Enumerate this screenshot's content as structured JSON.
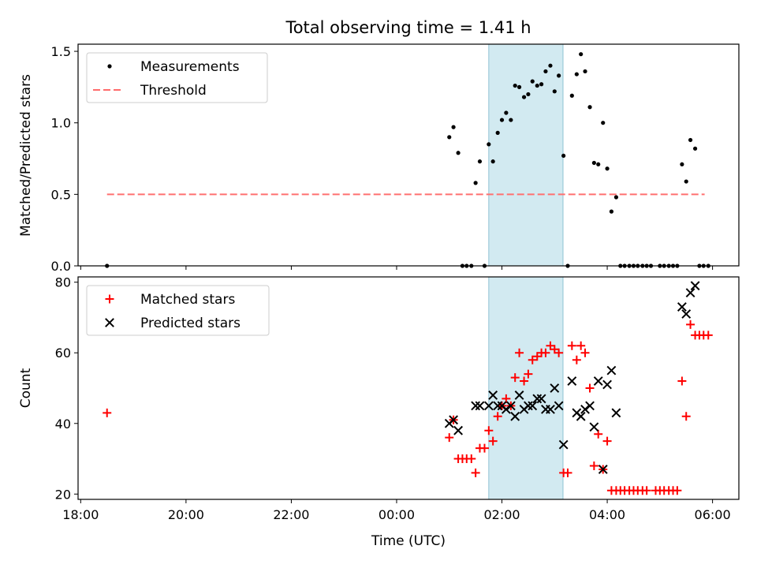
{
  "chart_data": {
    "title": "Total observing time = 1.41 h",
    "xlabel": "Time (UTC)",
    "x_ticks": [
      "18:00",
      "20:00",
      "22:00",
      "00:00",
      "02:00",
      "04:00",
      "06:00"
    ],
    "x_tick_hours": [
      -6,
      -4,
      -2,
      0,
      2,
      4,
      6
    ],
    "xlim_hours": [
      -6.05,
      6.5
    ],
    "shaded_span_hours": [
      1.75,
      3.16
    ],
    "shade_color": "#add8e6",
    "panels": [
      {
        "type": "scatter",
        "ylabel": "Matched/Predicted stars",
        "ylim": [
          0,
          1.55
        ],
        "y_ticks": [
          "0.0",
          "0.5",
          "1.0",
          "1.5"
        ],
        "y_tick_values": [
          0,
          0.5,
          1.0,
          1.5
        ],
        "legend": {
          "placement": "top-left",
          "entries": [
            {
              "label": "Measurements",
              "marker": "dot",
              "color": "#000000"
            },
            {
              "label": "Threshold",
              "marker": "dash",
              "color": "#ff6b6b"
            }
          ]
        },
        "threshold": {
          "name": "Threshold",
          "value": 0.5,
          "x_range_hours": [
            -5.5,
            5.85
          ],
          "color": "#ff7070"
        },
        "series": [
          {
            "name": "Measurements",
            "marker": "dot",
            "color": "#000000",
            "points": [
              [
                -5.5,
                0.0
              ],
              [
                1.0,
                0.9
              ],
              [
                1.08,
                0.97
              ],
              [
                1.17,
                0.79
              ],
              [
                1.25,
                0.0
              ],
              [
                1.33,
                0.0
              ],
              [
                1.42,
                0.0
              ],
              [
                1.5,
                0.58
              ],
              [
                1.58,
                0.73
              ],
              [
                1.67,
                0.0
              ],
              [
                1.75,
                0.85
              ],
              [
                1.83,
                0.73
              ],
              [
                1.92,
                0.93
              ],
              [
                2.0,
                1.02
              ],
              [
                2.08,
                1.07
              ],
              [
                2.17,
                1.02
              ],
              [
                2.25,
                1.26
              ],
              [
                2.33,
                1.25
              ],
              [
                2.42,
                1.18
              ],
              [
                2.5,
                1.2
              ],
              [
                2.58,
                1.29
              ],
              [
                2.67,
                1.26
              ],
              [
                2.75,
                1.27
              ],
              [
                2.83,
                1.36
              ],
              [
                2.92,
                1.4
              ],
              [
                3.0,
                1.22
              ],
              [
                3.08,
                1.33
              ],
              [
                3.17,
                0.77
              ],
              [
                3.25,
                0.0
              ],
              [
                3.33,
                1.19
              ],
              [
                3.42,
                1.34
              ],
              [
                3.5,
                1.48
              ],
              [
                3.58,
                1.36
              ],
              [
                3.67,
                1.11
              ],
              [
                3.75,
                0.72
              ],
              [
                3.83,
                0.71
              ],
              [
                3.92,
                1.0
              ],
              [
                4.0,
                0.68
              ],
              [
                4.08,
                0.38
              ],
              [
                4.17,
                0.48
              ],
              [
                4.25,
                0.0
              ],
              [
                4.33,
                0.0
              ],
              [
                4.42,
                0.0
              ],
              [
                4.5,
                0.0
              ],
              [
                4.58,
                0.0
              ],
              [
                4.67,
                0.0
              ],
              [
                4.75,
                0.0
              ],
              [
                4.83,
                0.0
              ],
              [
                5.0,
                0.0
              ],
              [
                5.08,
                0.0
              ],
              [
                5.17,
                0.0
              ],
              [
                5.25,
                0.0
              ],
              [
                5.33,
                0.0
              ],
              [
                5.42,
                0.71
              ],
              [
                5.5,
                0.59
              ],
              [
                5.58,
                0.88
              ],
              [
                5.67,
                0.82
              ],
              [
                5.75,
                0.0
              ],
              [
                5.83,
                0.0
              ],
              [
                5.92,
                0.0
              ]
            ]
          }
        ]
      },
      {
        "type": "scatter",
        "ylabel": "Count",
        "ylim": [
          18.5,
          81.5
        ],
        "y_ticks": [
          "20",
          "40",
          "60",
          "80"
        ],
        "y_tick_values": [
          20,
          40,
          60,
          80
        ],
        "legend": {
          "placement": "top-left",
          "entries": [
            {
              "label": "Matched stars",
              "marker": "plus",
              "color": "#ff0000"
            },
            {
              "label": "Predicted stars",
              "marker": "x",
              "color": "#000000"
            }
          ]
        },
        "series": [
          {
            "name": "Matched stars",
            "marker": "plus",
            "color": "#ff0000",
            "points": [
              [
                -5.5,
                43
              ],
              [
                1.0,
                36
              ],
              [
                1.08,
                41
              ],
              [
                1.17,
                30
              ],
              [
                1.25,
                30
              ],
              [
                1.33,
                30
              ],
              [
                1.42,
                30
              ],
              [
                1.5,
                26
              ],
              [
                1.58,
                33
              ],
              [
                1.67,
                33
              ],
              [
                1.75,
                38
              ],
              [
                1.83,
                35
              ],
              [
                1.92,
                42
              ],
              [
                2.0,
                45
              ],
              [
                2.08,
                47
              ],
              [
                2.17,
                45
              ],
              [
                2.25,
                53
              ],
              [
                2.33,
                60
              ],
              [
                2.42,
                52
              ],
              [
                2.5,
                54
              ],
              [
                2.58,
                58
              ],
              [
                2.67,
                59
              ],
              [
                2.75,
                60
              ],
              [
                2.83,
                60
              ],
              [
                2.92,
                62
              ],
              [
                3.0,
                61
              ],
              [
                3.08,
                60
              ],
              [
                3.17,
                26
              ],
              [
                3.25,
                26
              ],
              [
                3.33,
                62
              ],
              [
                3.42,
                58
              ],
              [
                3.5,
                62
              ],
              [
                3.58,
                60
              ],
              [
                3.67,
                50
              ],
              [
                3.75,
                28
              ],
              [
                3.83,
                37
              ],
              [
                3.92,
                27
              ],
              [
                4.0,
                35
              ],
              [
                4.08,
                21
              ],
              [
                4.17,
                21
              ],
              [
                4.25,
                21
              ],
              [
                4.33,
                21
              ],
              [
                4.42,
                21
              ],
              [
                4.5,
                21
              ],
              [
                4.58,
                21
              ],
              [
                4.67,
                21
              ],
              [
                4.75,
                21
              ],
              [
                4.92,
                21
              ],
              [
                5.0,
                21
              ],
              [
                5.08,
                21
              ],
              [
                5.17,
                21
              ],
              [
                5.25,
                21
              ],
              [
                5.33,
                21
              ],
              [
                5.42,
                52
              ],
              [
                5.5,
                42
              ],
              [
                5.58,
                68
              ],
              [
                5.67,
                65
              ],
              [
                5.75,
                65
              ],
              [
                5.83,
                65
              ],
              [
                5.92,
                65
              ]
            ]
          },
          {
            "name": "Predicted stars",
            "marker": "x",
            "color": "#000000",
            "points": [
              [
                1.0,
                40
              ],
              [
                1.08,
                41
              ],
              [
                1.17,
                38
              ],
              [
                1.5,
                45
              ],
              [
                1.58,
                45
              ],
              [
                1.75,
                45
              ],
              [
                1.83,
                48
              ],
              [
                1.92,
                45
              ],
              [
                2.0,
                45
              ],
              [
                2.08,
                44
              ],
              [
                2.17,
                45
              ],
              [
                2.25,
                42
              ],
              [
                2.33,
                48
              ],
              [
                2.42,
                44
              ],
              [
                2.5,
                45
              ],
              [
                2.58,
                45
              ],
              [
                2.67,
                47
              ],
              [
                2.75,
                47
              ],
              [
                2.83,
                44
              ],
              [
                2.92,
                44
              ],
              [
                3.0,
                50
              ],
              [
                3.08,
                45
              ],
              [
                3.17,
                34
              ],
              [
                3.33,
                52
              ],
              [
                3.42,
                43
              ],
              [
                3.5,
                42
              ],
              [
                3.58,
                44
              ],
              [
                3.67,
                45
              ],
              [
                3.75,
                39
              ],
              [
                3.83,
                52
              ],
              [
                3.92,
                27
              ],
              [
                4.0,
                51
              ],
              [
                4.08,
                55
              ],
              [
                4.17,
                43
              ],
              [
                5.42,
                73
              ],
              [
                5.5,
                71
              ],
              [
                5.58,
                77
              ],
              [
                5.67,
                79
              ]
            ]
          }
        ]
      }
    ]
  }
}
